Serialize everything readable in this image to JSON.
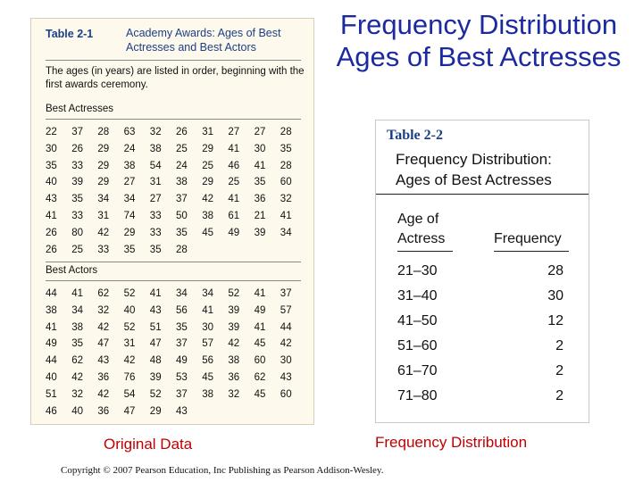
{
  "slide_title": "Frequency Distribution Ages of Best Actresses",
  "table1": {
    "number": "Table 2-1",
    "title": "Academy Awards: Ages of Best Actresses and Best Actors",
    "description": "The ages (in years) are listed in order, beginning with the first awards ceremony.",
    "actresses_label": "Best Actresses",
    "actresses_rows": [
      [
        "22",
        "37",
        "28",
        "63",
        "32",
        "26",
        "31",
        "27",
        "27",
        "28"
      ],
      [
        "30",
        "26",
        "29",
        "24",
        "38",
        "25",
        "29",
        "41",
        "30",
        "35"
      ],
      [
        "35",
        "33",
        "29",
        "38",
        "54",
        "24",
        "25",
        "46",
        "41",
        "28"
      ],
      [
        "40",
        "39",
        "29",
        "27",
        "31",
        "38",
        "29",
        "25",
        "35",
        "60"
      ],
      [
        "43",
        "35",
        "34",
        "34",
        "27",
        "37",
        "42",
        "41",
        "36",
        "32"
      ],
      [
        "41",
        "33",
        "31",
        "74",
        "33",
        "50",
        "38",
        "61",
        "21",
        "41"
      ],
      [
        "26",
        "80",
        "42",
        "29",
        "33",
        "35",
        "45",
        "49",
        "39",
        "34"
      ],
      [
        "26",
        "25",
        "33",
        "35",
        "35",
        "28",
        "",
        "",
        "",
        ""
      ]
    ],
    "actors_label": "Best Actors",
    "actors_rows": [
      [
        "44",
        "41",
        "62",
        "52",
        "41",
        "34",
        "34",
        "52",
        "41",
        "37"
      ],
      [
        "38",
        "34",
        "32",
        "40",
        "43",
        "56",
        "41",
        "39",
        "49",
        "57"
      ],
      [
        "41",
        "38",
        "42",
        "52",
        "51",
        "35",
        "30",
        "39",
        "41",
        "44"
      ],
      [
        "49",
        "35",
        "47",
        "31",
        "47",
        "37",
        "57",
        "42",
        "45",
        "42"
      ],
      [
        "44",
        "62",
        "43",
        "42",
        "48",
        "49",
        "56",
        "38",
        "60",
        "30"
      ],
      [
        "40",
        "42",
        "36",
        "76",
        "39",
        "53",
        "45",
        "36",
        "62",
        "43"
      ],
      [
        "51",
        "32",
        "42",
        "54",
        "52",
        "37",
        "38",
        "32",
        "45",
        "60"
      ],
      [
        "46",
        "40",
        "36",
        "47",
        "29",
        "43",
        "",
        "",
        "",
        ""
      ]
    ]
  },
  "table2": {
    "number": "Table 2-2",
    "title": "Frequency Distribution: Ages of Best Actresses",
    "col_class_line1": "Age of",
    "col_class_line2": "Actress",
    "col_freq": "Frequency",
    "rows": [
      {
        "cls": "21–30",
        "freq": "28"
      },
      {
        "cls": "31–40",
        "freq": "30"
      },
      {
        "cls": "41–50",
        "freq": "12"
      },
      {
        "cls": "51–60",
        "freq": "2"
      },
      {
        "cls": "61–70",
        "freq": "2"
      },
      {
        "cls": "71–80",
        "freq": "2"
      }
    ]
  },
  "caption_left": "Original Data",
  "caption_right": "Frequency Distribution",
  "copyright": "Copyright © 2007 Pearson Education, Inc Publishing as Pearson Addison-Wesley."
}
